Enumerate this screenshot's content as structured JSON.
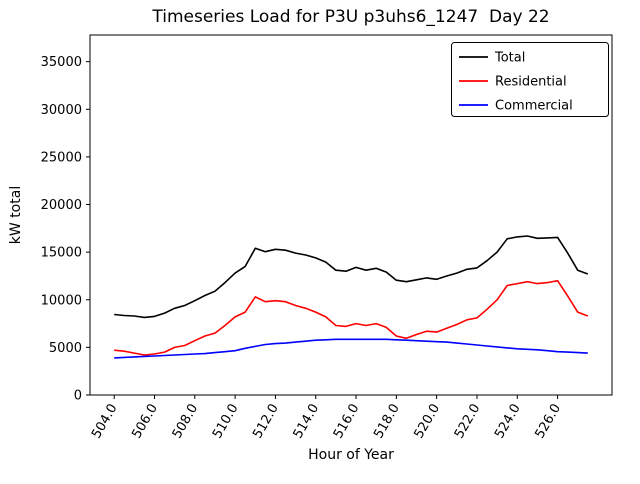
{
  "chart_data": {
    "type": "line",
    "title": "Timeseries Load for P3U p3uhs6_1247  Day 22",
    "xlabel": "Hour of Year",
    "ylabel": "kW total",
    "xlim": [
      502.8,
      528.7
    ],
    "ylim": [
      0,
      37800
    ],
    "grid": false,
    "legend_position": "upper right",
    "xticks": [
      504,
      506,
      508,
      510,
      512,
      514,
      516,
      518,
      520,
      522,
      524,
      526
    ],
    "xtick_labels": [
      "504.0",
      "506.0",
      "508.0",
      "510.0",
      "512.0",
      "514.0",
      "516.0",
      "518.0",
      "520.0",
      "522.0",
      "524.0",
      "526.0"
    ],
    "yticks": [
      0,
      5000,
      10000,
      15000,
      20000,
      25000,
      30000,
      35000
    ],
    "ytick_labels": [
      "0",
      "5000",
      "10000",
      "15000",
      "20000",
      "25000",
      "30000",
      "35000"
    ],
    "x": [
      504.0,
      504.5,
      505.0,
      505.5,
      506.0,
      506.5,
      507.0,
      507.5,
      508.0,
      508.5,
      509.0,
      509.5,
      510.0,
      510.5,
      511.0,
      511.5,
      512.0,
      512.5,
      513.0,
      513.5,
      514.0,
      514.5,
      515.0,
      515.5,
      516.0,
      516.5,
      517.0,
      517.5,
      518.0,
      518.5,
      519.0,
      519.5,
      520.0,
      520.5,
      521.0,
      521.5,
      522.0,
      522.5,
      523.0,
      523.5,
      524.0,
      524.5,
      525.0,
      525.5,
      526.0,
      526.5,
      527.0,
      527.5
    ],
    "series": [
      {
        "name": "Total",
        "color": "#000000",
        "values": [
          8450,
          8350,
          8300,
          8150,
          8250,
          8600,
          9100,
          9400,
          9900,
          10450,
          10900,
          11800,
          12800,
          13500,
          15400,
          15050,
          15300,
          15200,
          14900,
          14700,
          14400,
          13950,
          13100,
          13000,
          13400,
          13100,
          13300,
          12900,
          12050,
          11900,
          12100,
          12300,
          12150,
          12500,
          12800,
          13200,
          13350,
          14100,
          15000,
          16400,
          16600,
          16700,
          16450,
          16500,
          16550,
          14900,
          13100,
          12700
        ]
      },
      {
        "name": "Residential",
        "color": "#ff0000",
        "values": [
          4700,
          4600,
          4400,
          4200,
          4300,
          4500,
          5000,
          5200,
          5700,
          6200,
          6500,
          7300,
          8200,
          8700,
          10300,
          9800,
          9900,
          9800,
          9400,
          9100,
          8700,
          8200,
          7300,
          7200,
          7500,
          7300,
          7500,
          7100,
          6200,
          5950,
          6350,
          6700,
          6600,
          7000,
          7400,
          7900,
          8100,
          9000,
          10000,
          11500,
          11700,
          11900,
          11700,
          11800,
          12000,
          10400,
          8700,
          8300
        ]
      },
      {
        "name": "Commercial",
        "color": "#0000ff",
        "values": [
          3900,
          3950,
          4000,
          4050,
          4100,
          4150,
          4200,
          4250,
          4300,
          4350,
          4450,
          4550,
          4650,
          4900,
          5100,
          5300,
          5400,
          5450,
          5550,
          5650,
          5750,
          5800,
          5850,
          5850,
          5850,
          5850,
          5850,
          5850,
          5800,
          5750,
          5700,
          5650,
          5600,
          5550,
          5450,
          5350,
          5250,
          5150,
          5050,
          4950,
          4850,
          4800,
          4750,
          4650,
          4550,
          4500,
          4450,
          4400
        ]
      }
    ]
  }
}
